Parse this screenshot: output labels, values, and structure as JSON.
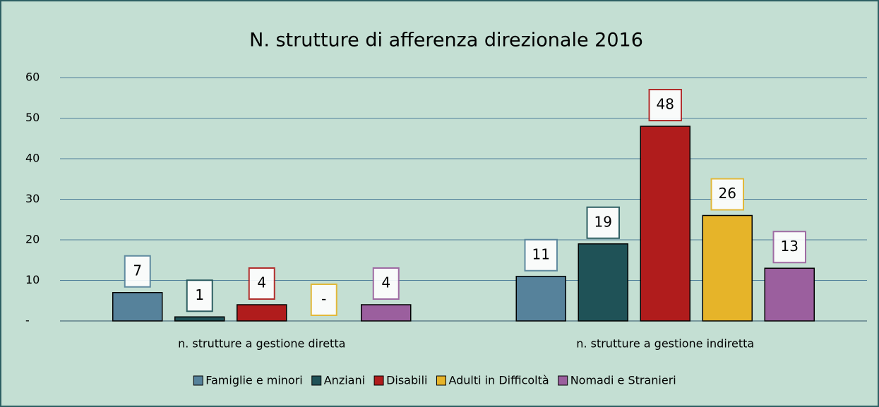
{
  "chart_data": {
    "type": "bar",
    "title": "N. strutture di afferenza direzionale 2016",
    "categories": [
      "n. strutture a gestione diretta",
      "n. strutture a gestione indiretta"
    ],
    "series": [
      {
        "name": "Famiglie e minori",
        "color": "#56829b",
        "values": [
          7,
          11
        ]
      },
      {
        "name": "Anziani",
        "color": "#1f5257",
        "values": [
          1,
          19
        ]
      },
      {
        "name": "Disabili",
        "color": "#b01c1c",
        "values": [
          4,
          48
        ]
      },
      {
        "name": "Adulti in Difficoltà",
        "color": "#e6b429",
        "values": [
          0,
          26
        ],
        "value_labels": [
          "-",
          "26"
        ]
      },
      {
        "name": "Nomadi e Stranieri",
        "color": "#9b5f9e",
        "values": [
          4,
          13
        ]
      }
    ],
    "ylim": [
      0,
      60
    ],
    "yticks": [
      {
        "value": 0,
        "label": "-"
      },
      10,
      20,
      30,
      40,
      50,
      60
    ],
    "grid": true,
    "legend": "bottom"
  }
}
